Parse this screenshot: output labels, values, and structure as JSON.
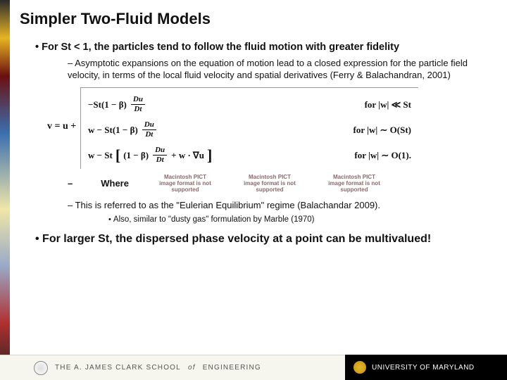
{
  "title": "Simpler Two-Fluid Models",
  "bullet1a": "For St < 1, the particles tend to follow the fluid motion with greater fidelity",
  "sub1": "Asymptotic expansions on the equation of motion lead to a closed expression for the particle field velocity, in terms of the local fluid velocity and spatial derivatives (Ferry & Balachandran, 2001)",
  "eq": {
    "prefix_v": "v",
    "prefix_eq": " = ",
    "prefix_u": "u",
    "prefix_plus": " + ",
    "row1_lhs_a": "−St(1 − β)",
    "row1_frac_num": "Du",
    "row1_frac_den": "Dt",
    "row1_rhs": "for   |w| ≪ St",
    "row2_lhs_a": "w − St(1 − β)",
    "row2_frac_num": "Du",
    "row2_frac_den": "Dt",
    "row2_rhs": "for   |w| ∼ O(St)",
    "row3_lhs_a": "w − St",
    "row3_inner": "(1 − β)",
    "row3_frac_num": "Du",
    "row3_frac_den": "Dt",
    "row3_tail": " + w · ∇u",
    "row3_rhs": "for   |w| ∼ O(1)."
  },
  "where_label": "Where",
  "pict_text": "Macintosh PICT image format is not supported",
  "sub2": "This is referred to as the \"Eulerian Equilibrium\" regime (Balachandar 2009).",
  "sub2a": "Also, similar to \"dusty gas\" formulation by Marble (1970)",
  "bullet2": "For larger St, the dispersed phase velocity at a point can be multivalued!",
  "footer": {
    "clark_pre": "THE  A.  JAMES  CLARK  SCHOOL",
    "clark_of": "of",
    "clark_post": "ENGINEERING",
    "umd": "UNIVERSITY OF MARYLAND"
  },
  "colors": {
    "title": "#111111",
    "text": "#111111",
    "umd_bg": "#000000",
    "umd_fg": "#ffffff",
    "clark_bg": "#f6f6ef"
  }
}
